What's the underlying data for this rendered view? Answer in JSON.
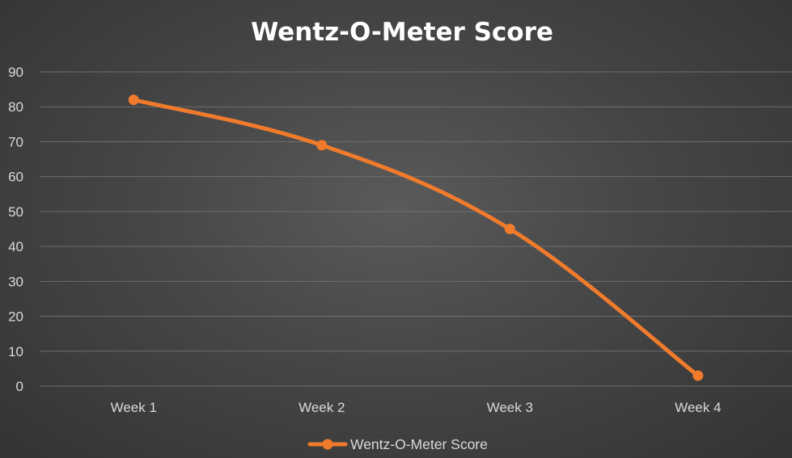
{
  "chart_data": {
    "type": "line",
    "title": "Wentz-O-Meter Score",
    "categories": [
      "Week 1",
      "Week 2",
      "Week 3",
      "Week 4"
    ],
    "series": [
      {
        "name": "Wentz-O-Meter Score",
        "values": [
          82,
          69,
          45,
          3
        ],
        "color": "#f07b2c"
      }
    ],
    "ylim": [
      0,
      90
    ],
    "yticks": [
      0,
      10,
      20,
      30,
      40,
      50,
      60,
      70,
      80,
      90
    ],
    "grid": true,
    "legend_position": "bottom"
  }
}
